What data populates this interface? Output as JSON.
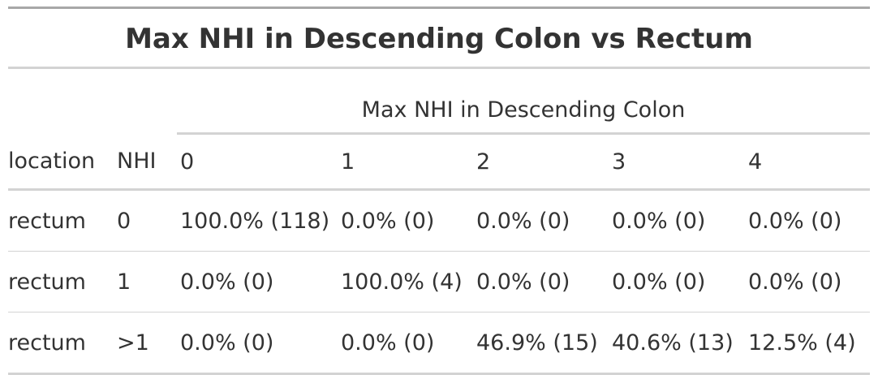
{
  "table": {
    "title": "Max NHI in Descending Colon vs Rectum",
    "spanner": "Max NHI in Descending Colon",
    "columns": [
      "location",
      "NHI",
      "0",
      "1",
      "2",
      "3",
      "4"
    ],
    "rows": [
      [
        "rectum",
        "0",
        "100.0% (118)",
        "0.0% (0)",
        "0.0% (0)",
        "0.0% (0)",
        "0.0% (0)"
      ],
      [
        "rectum",
        "1",
        "0.0% (0)",
        "100.0% (4)",
        "0.0% (0)",
        "0.0% (0)",
        "0.0% (0)"
      ],
      [
        "rectum",
        ">1",
        "0.0% (0)",
        "0.0% (0)",
        "46.9% (15)",
        "40.6% (13)",
        "12.5% (4)"
      ]
    ]
  }
}
